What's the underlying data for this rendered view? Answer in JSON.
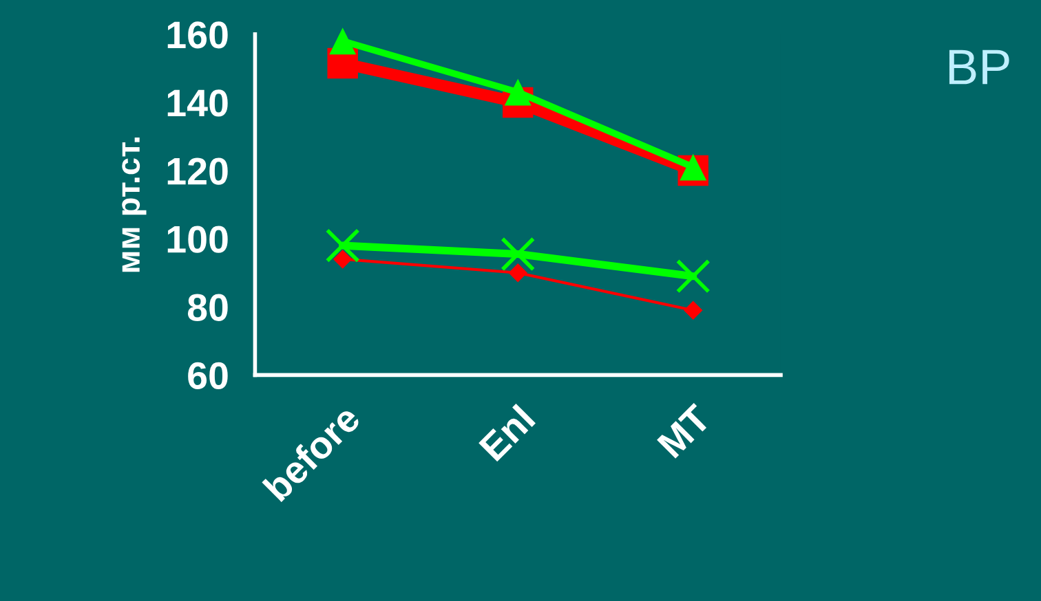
{
  "chart_data": {
    "type": "line",
    "title": "BP",
    "ylabel": "мм рт.ст.",
    "categories": [
      "before",
      "Enl",
      "MT"
    ],
    "series": [
      {
        "color": "#ff0000",
        "marker": "square",
        "values": [
          151.5,
          140,
          120
        ]
      },
      {
        "color": "#00ff00",
        "marker": "triangle",
        "values": [
          158,
          143,
          121
        ]
      },
      {
        "color": "#ff0000",
        "marker": "diamond",
        "values": [
          94,
          90,
          79
        ]
      },
      {
        "color": "#00ff00",
        "marker": "cross",
        "values": [
          98,
          95.5,
          89
        ]
      }
    ],
    "ylim": [
      60,
      160
    ],
    "yticks": [
      60,
      80,
      100,
      120,
      140,
      160
    ],
    "grid": false,
    "legend": false
  }
}
